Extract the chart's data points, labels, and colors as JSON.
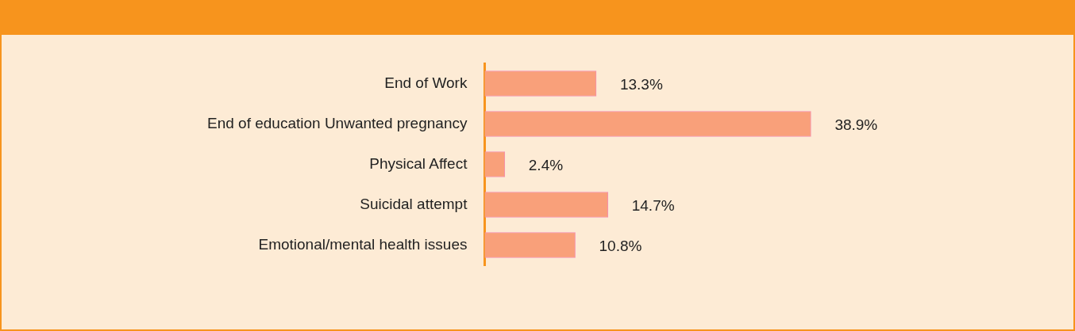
{
  "chart_data": {
    "type": "bar",
    "orientation": "horizontal",
    "categories": [
      "End of Work",
      "End of education Unwanted pregnancy",
      "Physical Affect",
      "Suicidal attempt",
      "Emotional/mental health issues"
    ],
    "values": [
      13.3,
      38.9,
      2.4,
      14.7,
      10.8
    ],
    "value_labels": [
      "13.3%",
      "38.9%",
      "2.4%",
      "14.7%",
      "10.8%"
    ],
    "color": "#f9a07a",
    "grid": false,
    "legend": false
  }
}
